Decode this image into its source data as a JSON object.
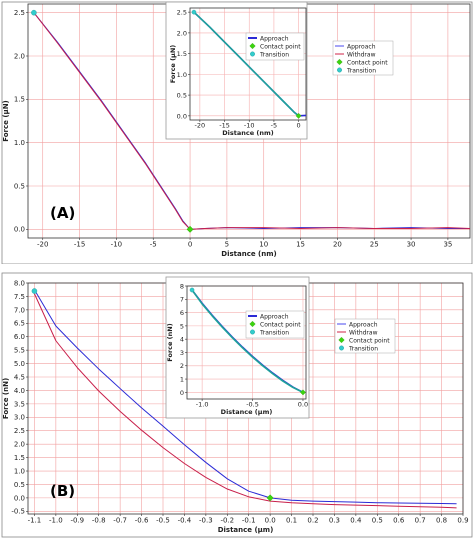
{
  "chart_data": [
    {
      "id": "A",
      "panel_label": "(A)",
      "type": "line",
      "xlabel": "Distance (nm)",
      "ylabel": "Force (µN)",
      "xlim": [
        -22,
        38
      ],
      "ylim": [
        -0.1,
        2.6
      ],
      "xticks": [
        -20,
        -15,
        -10,
        -5,
        0,
        5,
        10,
        15,
        20,
        25,
        30,
        35
      ],
      "yticks": [
        0.0,
        0.5,
        1.0,
        1.5,
        2.0,
        2.5
      ],
      "ytick_labels": [
        "0.0",
        "0.5",
        "1.0",
        "1.5",
        "2.0",
        "2.5"
      ],
      "grid": true,
      "series": [
        {
          "name": "Approach",
          "color": "#2b2bd6",
          "x": [
            -21.2,
            -18,
            -15,
            -12,
            -9,
            -6,
            -4,
            -2,
            -1,
            0,
            2,
            5,
            10,
            15,
            20,
            25,
            30,
            35,
            38
          ],
          "y": [
            2.5,
            2.16,
            1.82,
            1.48,
            1.12,
            0.76,
            0.5,
            0.24,
            0.1,
            0.0,
            0.01,
            0.02,
            0.01,
            0.02,
            0.02,
            0.01,
            0.02,
            0.01,
            0.01
          ]
        },
        {
          "name": "Withdraw",
          "color": "#c8204b",
          "x": [
            -21.2,
            -18,
            -15,
            -12,
            -9,
            -6,
            -4,
            -2,
            -1,
            0,
            2,
            5,
            10,
            15,
            20,
            25,
            30,
            35,
            38
          ],
          "y": [
            2.5,
            2.15,
            1.81,
            1.47,
            1.11,
            0.75,
            0.49,
            0.23,
            0.09,
            0.0,
            0.01,
            0.02,
            0.02,
            0.01,
            0.02,
            0.01,
            0.01,
            0.02,
            0.01
          ]
        }
      ],
      "points": [
        {
          "name": "Contact point",
          "color": "#3bd40e",
          "marker": "diamond",
          "x": 0,
          "y": 0.0
        },
        {
          "name": "Transition",
          "color": "#33cccc",
          "marker": "circle",
          "x": -21.2,
          "y": 2.5
        }
      ],
      "inset": {
        "xlabel": "Distance (nm)",
        "ylabel": "Force (µN)",
        "xlim": [
          -22,
          1.5
        ],
        "ylim": [
          -0.1,
          2.6
        ],
        "xticks": [
          -20,
          -15,
          -10,
          -5,
          0
        ],
        "yticks": [
          0.0,
          0.5,
          1.0,
          1.5,
          2.0,
          2.5
        ],
        "ytick_labels": [
          "0.0",
          "0.5",
          "1.0",
          "1.5",
          "2.0",
          "2.5"
        ],
        "series": [
          {
            "name": "Approach",
            "color": "#2b2bd6",
            "x": [
              -21.2,
              -18,
              -15,
              -12,
              -9,
              -6,
              -3,
              -1,
              0,
              1.5
            ],
            "y": [
              2.5,
              2.14,
              1.78,
              1.42,
              1.06,
              0.7,
              0.34,
              0.1,
              0.0,
              0.01
            ]
          },
          {
            "name": "Withdraw",
            "color": "#1fa39a",
            "x": [
              -21.2,
              -18,
              -15,
              -12,
              -9,
              -6,
              -3,
              -1,
              0
            ],
            "y": [
              2.5,
              2.14,
              1.78,
              1.42,
              1.06,
              0.7,
              0.34,
              0.1,
              0.0
            ]
          }
        ],
        "points": [
          {
            "name": "Contact point",
            "color": "#3bd40e",
            "marker": "diamond",
            "x": 0,
            "y": 0.0
          },
          {
            "name": "Transition",
            "color": "#33cccc",
            "marker": "circle",
            "x": -21.2,
            "y": 2.5
          }
        ],
        "legend_left": [
          {
            "name": "Approach",
            "color": "#2b2bd6",
            "marker": "line"
          },
          {
            "name": "Contact point",
            "color": "#3bd40e",
            "marker": "diamond"
          },
          {
            "name": "Transition",
            "color": "#33cccc",
            "marker": "circle"
          }
        ],
        "legend_right": [
          {
            "name": "Approach",
            "color": "#5a5af0",
            "marker": "line"
          },
          {
            "name": "Withdraw",
            "color": "#d43a5a",
            "marker": "line"
          },
          {
            "name": "Contact point",
            "color": "#3bd40e",
            "marker": "diamond"
          },
          {
            "name": "Transition",
            "color": "#33cccc",
            "marker": "circle"
          }
        ]
      }
    },
    {
      "id": "B",
      "panel_label": "(B)",
      "type": "line",
      "xlabel": "Distance (µm)",
      "ylabel": "Force (nN)",
      "xlim": [
        -1.13,
        0.9
      ],
      "ylim": [
        -0.6,
        8.0
      ],
      "xticks": [
        -1.1,
        -1.0,
        -0.9,
        -0.8,
        -0.7,
        -0.6,
        -0.5,
        -0.4,
        -0.3,
        -0.2,
        -0.1,
        0.0,
        0.1,
        0.2,
        0.3,
        0.4,
        0.5,
        0.6,
        0.7,
        0.8,
        0.9
      ],
      "xtick_labels": [
        "-1.1",
        "-1.0",
        "-0.9",
        "-0.8",
        "-0.7",
        "-0.6",
        "-0.5",
        "-0.4",
        "-0.3",
        "-0.2",
        "-0.1",
        "0.0",
        "0.1",
        "0.2",
        "0.3",
        "0.4",
        "0.5",
        "0.6",
        "0.7",
        "0.8",
        "0.9"
      ],
      "yticks": [
        -0.5,
        0.0,
        0.5,
        1.0,
        1.5,
        2.0,
        2.5,
        3.0,
        3.5,
        4.0,
        4.5,
        5.0,
        5.5,
        6.0,
        6.5,
        7.0,
        7.5,
        8.0
      ],
      "ytick_labels": [
        "-0.5",
        "0.0",
        "0.5",
        "1.0",
        "1.5",
        "2.0",
        "2.5",
        "3.0",
        "3.5",
        "4.0",
        "4.5",
        "5.0",
        "5.5",
        "6.0",
        "6.5",
        "7.0",
        "7.5",
        "8.0"
      ],
      "grid": true,
      "series": [
        {
          "name": "Approach",
          "color": "#2b2bd6",
          "x": [
            -1.1,
            -1.0,
            -0.9,
            -0.8,
            -0.7,
            -0.6,
            -0.5,
            -0.4,
            -0.3,
            -0.2,
            -0.1,
            0.0,
            0.1,
            0.2,
            0.3,
            0.4,
            0.5,
            0.6,
            0.7,
            0.8,
            0.87
          ],
          "y": [
            7.75,
            6.4,
            5.58,
            4.8,
            4.07,
            3.35,
            2.67,
            1.98,
            1.32,
            0.71,
            0.25,
            0.0,
            -0.09,
            -0.12,
            -0.14,
            -0.16,
            -0.18,
            -0.19,
            -0.2,
            -0.21,
            -0.22
          ]
        },
        {
          "name": "Withdraw",
          "color": "#c8204b",
          "x": [
            -1.1,
            -1.0,
            -0.9,
            -0.8,
            -0.7,
            -0.6,
            -0.5,
            -0.4,
            -0.3,
            -0.2,
            -0.1,
            0.0,
            0.1,
            0.2,
            0.3,
            0.4,
            0.5,
            0.6,
            0.7,
            0.8,
            0.87
          ],
          "y": [
            7.6,
            5.85,
            4.85,
            3.98,
            3.22,
            2.52,
            1.87,
            1.28,
            0.76,
            0.33,
            0.04,
            -0.12,
            -0.18,
            -0.22,
            -0.25,
            -0.27,
            -0.29,
            -0.31,
            -0.33,
            -0.35,
            -0.37
          ]
        }
      ],
      "points": [
        {
          "name": "Contact point",
          "color": "#3bd40e",
          "marker": "diamond",
          "x": 0.0,
          "y": 0.0
        },
        {
          "name": "Transition",
          "color": "#33cccc",
          "marker": "circle",
          "x": -1.1,
          "y": 7.7
        }
      ],
      "inset": {
        "xlabel": "Distance (µm)",
        "ylabel": "Force (nN)",
        "xlim": [
          -1.15,
          0.03
        ],
        "ylim": [
          -0.5,
          8.0
        ],
        "xticks": [
          -1.0,
          -0.5,
          0.0
        ],
        "xtick_labels": [
          "-1.0",
          "-0.5",
          "0.0"
        ],
        "yticks": [
          0,
          1,
          2,
          3,
          4,
          5,
          6,
          7,
          8
        ],
        "ytick_labels": [
          "0",
          "1",
          "2",
          "3",
          "4",
          "5",
          "6",
          "7",
          "8"
        ],
        "series": [
          {
            "name": "Approach",
            "color": "#2b2bd6",
            "x": [
              -1.1,
              -1.0,
              -0.9,
              -0.8,
              -0.7,
              -0.6,
              -0.5,
              -0.4,
              -0.3,
              -0.2,
              -0.1,
              0.0
            ],
            "y": [
              7.7,
              6.7,
              5.8,
              4.95,
              4.15,
              3.4,
              2.7,
              2.05,
              1.45,
              0.9,
              0.4,
              0.0
            ]
          },
          {
            "name": "Withdraw",
            "color": "#1fa39a",
            "x": [
              -1.1,
              -1.0,
              -0.9,
              -0.8,
              -0.7,
              -0.6,
              -0.5,
              -0.4,
              -0.3,
              -0.2,
              -0.1,
              0.0
            ],
            "y": [
              7.7,
              6.65,
              5.75,
              4.9,
              4.1,
              3.35,
              2.65,
              2.0,
              1.4,
              0.85,
              0.37,
              0.0
            ]
          }
        ],
        "points": [
          {
            "name": "Contact point",
            "color": "#3bd40e",
            "marker": "diamond",
            "x": 0.0,
            "y": 0.0
          },
          {
            "name": "Transition",
            "color": "#33cccc",
            "marker": "circle",
            "x": -1.1,
            "y": 7.7
          }
        ],
        "legend_left": [
          {
            "name": "Approach",
            "color": "#2b2bd6",
            "marker": "line"
          },
          {
            "name": "Contact point",
            "color": "#3bd40e",
            "marker": "diamond"
          },
          {
            "name": "Transition",
            "color": "#33cccc",
            "marker": "circle"
          }
        ],
        "legend_right": [
          {
            "name": "Approach",
            "color": "#5a5af0",
            "marker": "line"
          },
          {
            "name": "Withdraw",
            "color": "#d43a5a",
            "marker": "line"
          },
          {
            "name": "Contact point",
            "color": "#3bd40e",
            "marker": "diamond"
          },
          {
            "name": "Transition",
            "color": "#33cccc",
            "marker": "circle"
          }
        ]
      }
    }
  ],
  "colors": {
    "grid": "#f2a0a0",
    "inset_grid": "#f6b0b0",
    "axis": "#333333",
    "background": "#ffffff"
  }
}
